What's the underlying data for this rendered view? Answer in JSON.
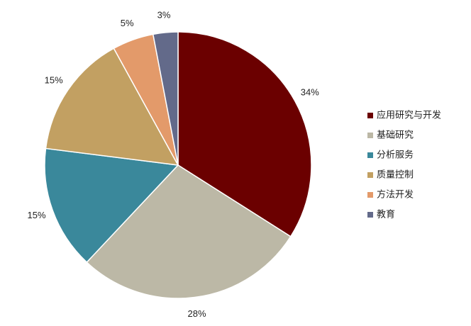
{
  "chart_data": {
    "type": "pie",
    "categories": [
      "应用研究与开发",
      "基础研究",
      "分析服务",
      "质量控制",
      "方法开发",
      "教育"
    ],
    "values": [
      34,
      28,
      15,
      15,
      5,
      3
    ],
    "value_labels": [
      "34%",
      "28%",
      "15%",
      "15%",
      "5%",
      "3%"
    ],
    "colors": [
      "#6b0000",
      "#bcb8a6",
      "#3a889b",
      "#c2a062",
      "#e39a6a",
      "#636a8a"
    ],
    "legend": "right"
  }
}
